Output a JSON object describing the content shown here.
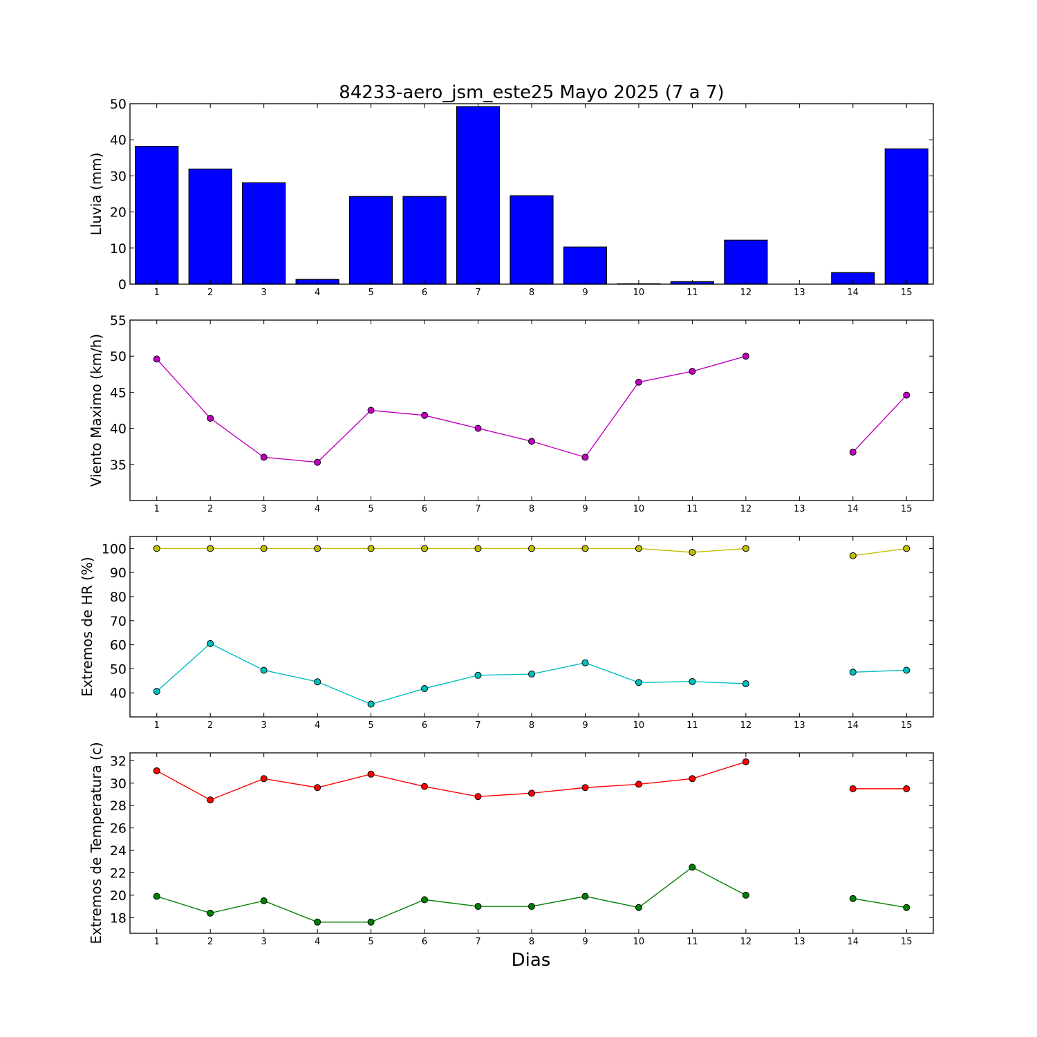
{
  "figure": {
    "title": "84233-aero_jsm_este25 Mayo 2025  (7 a 7)",
    "xlabel": "Dias"
  },
  "chart_data": [
    {
      "type": "bar",
      "ylabel": "Lluvia (mm)",
      "xlim": [
        0.5,
        15.5
      ],
      "ylim": [
        0,
        50
      ],
      "yticks": [
        0,
        10,
        20,
        30,
        40,
        50
      ],
      "xticks": [
        1,
        2,
        3,
        4,
        5,
        6,
        7,
        8,
        9,
        10,
        11,
        12,
        13,
        14,
        15
      ],
      "grid": false,
      "series": [
        {
          "color": "#0000ff",
          "x": [
            1,
            2,
            3,
            4,
            5,
            6,
            7,
            8,
            9,
            10,
            11,
            12,
            13,
            14,
            15
          ],
          "values": [
            38.2,
            31.9,
            28.1,
            1.3,
            24.3,
            24.3,
            49.2,
            24.5,
            10.3,
            0.1,
            0.7,
            12.2,
            null,
            3.2,
            37.5
          ]
        }
      ]
    },
    {
      "type": "line",
      "ylabel": "Viento Maximo (km/h)",
      "xlim": [
        0.5,
        15.5
      ],
      "ylim": [
        30,
        55
      ],
      "yticks": [
        35,
        40,
        45,
        50,
        55
      ],
      "xticks": [
        1,
        2,
        3,
        4,
        5,
        6,
        7,
        8,
        9,
        10,
        11,
        12,
        13,
        14,
        15
      ],
      "grid": false,
      "series": [
        {
          "color": "#bf00bf",
          "x": [
            1,
            2,
            3,
            4,
            5,
            6,
            7,
            8,
            9,
            10,
            11,
            12,
            13,
            14,
            15
          ],
          "values": [
            49.6,
            41.4,
            36.0,
            35.3,
            42.5,
            41.8,
            40.0,
            38.2,
            36.0,
            46.4,
            47.9,
            50.0,
            null,
            36.7,
            44.6
          ]
        }
      ]
    },
    {
      "type": "line",
      "ylabel": "Extremos de HR (%)",
      "xlim": [
        0.5,
        15.5
      ],
      "ylim": [
        30,
        105
      ],
      "yticks": [
        40,
        50,
        60,
        70,
        80,
        90,
        100
      ],
      "xticks": [
        1,
        2,
        3,
        4,
        5,
        6,
        7,
        8,
        9,
        10,
        11,
        12,
        13,
        14,
        15
      ],
      "grid": false,
      "series": [
        {
          "color": "#bfbf00",
          "x": [
            1,
            2,
            3,
            4,
            5,
            6,
            7,
            8,
            9,
            10,
            11,
            12,
            13,
            14,
            15
          ],
          "values": [
            100,
            100,
            100,
            100,
            100,
            100,
            100,
            100,
            100,
            100,
            98.4,
            100,
            null,
            97,
            100
          ]
        },
        {
          "color": "#00bfbf",
          "x": [
            1,
            2,
            3,
            4,
            5,
            6,
            7,
            8,
            9,
            10,
            11,
            12,
            13,
            14,
            15
          ],
          "values": [
            40.6,
            60.5,
            49.4,
            44.6,
            35.3,
            41.8,
            47.3,
            47.8,
            52.5,
            44.3,
            44.7,
            43.8,
            null,
            48.6,
            49.4
          ]
        }
      ]
    },
    {
      "type": "line",
      "ylabel": "Extremos de Temperatura (c)",
      "xlim": [
        0.5,
        15.5
      ],
      "ylim": [
        16.6,
        32.7
      ],
      "yticks": [
        18,
        20,
        22,
        24,
        26,
        28,
        30,
        32
      ],
      "xticks": [
        1,
        2,
        3,
        4,
        5,
        6,
        7,
        8,
        9,
        10,
        11,
        12,
        13,
        14,
        15
      ],
      "grid": false,
      "series": [
        {
          "color": "#ff0000",
          "x": [
            1,
            2,
            3,
            4,
            5,
            6,
            7,
            8,
            9,
            10,
            11,
            12,
            13,
            14,
            15
          ],
          "values": [
            31.1,
            28.5,
            30.4,
            29.6,
            30.8,
            29.7,
            28.8,
            29.1,
            29.6,
            29.9,
            30.4,
            31.9,
            null,
            29.5,
            29.5
          ]
        },
        {
          "color": "#008000",
          "x": [
            1,
            2,
            3,
            4,
            5,
            6,
            7,
            8,
            9,
            10,
            11,
            12,
            13,
            14,
            15
          ],
          "values": [
            19.9,
            18.4,
            19.5,
            17.6,
            17.6,
            19.6,
            19.0,
            19.0,
            19.9,
            18.9,
            22.5,
            20.0,
            null,
            19.7,
            18.9
          ]
        }
      ]
    }
  ]
}
